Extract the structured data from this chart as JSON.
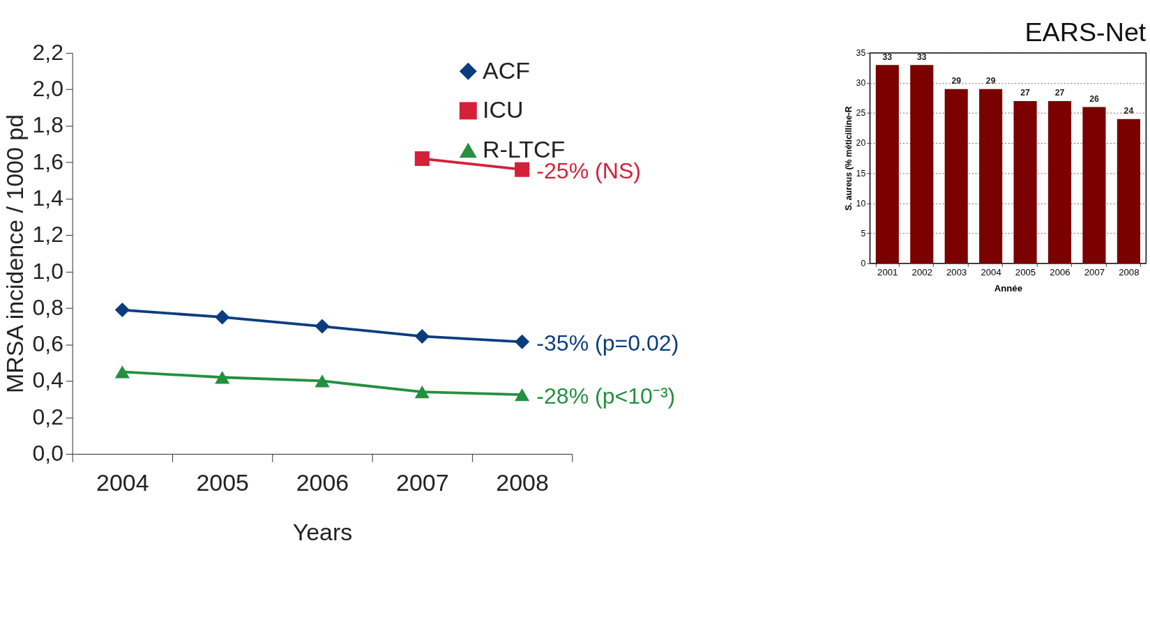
{
  "chart_data": [
    {
      "type": "line",
      "xlabel": "Years",
      "ylabel": "MRSA incidence / 1000 pd",
      "categories": [
        "2004",
        "2005",
        "2006",
        "2007",
        "2008"
      ],
      "series": [
        {
          "name": "ACF",
          "color": "#0b3d7e",
          "marker": "diamond",
          "values": [
            0.79,
            0.75,
            0.7,
            0.645,
            0.615
          ]
        },
        {
          "name": "ICU",
          "color": "#d5203a",
          "marker": "square",
          "values": [
            null,
            null,
            null,
            1.62,
            1.56
          ]
        },
        {
          "name": "R-LTCF",
          "color": "#23903f",
          "marker": "triangle",
          "values": [
            0.45,
            0.42,
            0.4,
            0.34,
            0.325
          ]
        }
      ],
      "ylim": [
        0,
        2.2
      ],
      "yticks": [
        {
          "value": 0,
          "label": "0,0"
        },
        {
          "value": 0.2,
          "label": "0,2"
        },
        {
          "value": 0.4,
          "label": "0,4"
        },
        {
          "value": 0.6,
          "label": "0,6"
        },
        {
          "value": 0.8,
          "label": "0,8"
        },
        {
          "value": 1.0,
          "label": "1,0"
        },
        {
          "value": 1.2,
          "label": "1,2"
        },
        {
          "value": 1.4,
          "label": "1,4"
        },
        {
          "value": 1.6,
          "label": "1,6"
        },
        {
          "value": 1.8,
          "label": "1,8"
        },
        {
          "value": 2.0,
          "label": "2,0"
        },
        {
          "value": 2.2,
          "label": "2,2"
        }
      ],
      "annotations": [
        {
          "text": "-35% (p=0.02)",
          "x": "2008",
          "y": 0.615
        },
        {
          "text": "-25% (NS)",
          "x": "2008",
          "y": 1.56
        },
        {
          "text": "-28% (p<10⁻³)",
          "x": "2008",
          "y": 0.325
        }
      ],
      "legend": "top right",
      "grid": false,
      "line_style": "solid"
    },
    {
      "type": "bar",
      "title": "EARS-Net",
      "xlabel": "Année",
      "ylabel": "S. aureus (% méticilline-R",
      "categories": [
        "2001",
        "2002",
        "2003",
        "2004",
        "2005",
        "2006",
        "2007",
        "2008"
      ],
      "values": [
        33,
        33,
        29,
        29,
        27,
        27,
        26,
        24
      ],
      "color": "#7b0000",
      "ylim": [
        0,
        35
      ],
      "yticks": [
        0,
        5,
        10,
        15,
        20,
        25,
        30,
        35
      ],
      "data_labels": true,
      "grid": "y"
    }
  ]
}
